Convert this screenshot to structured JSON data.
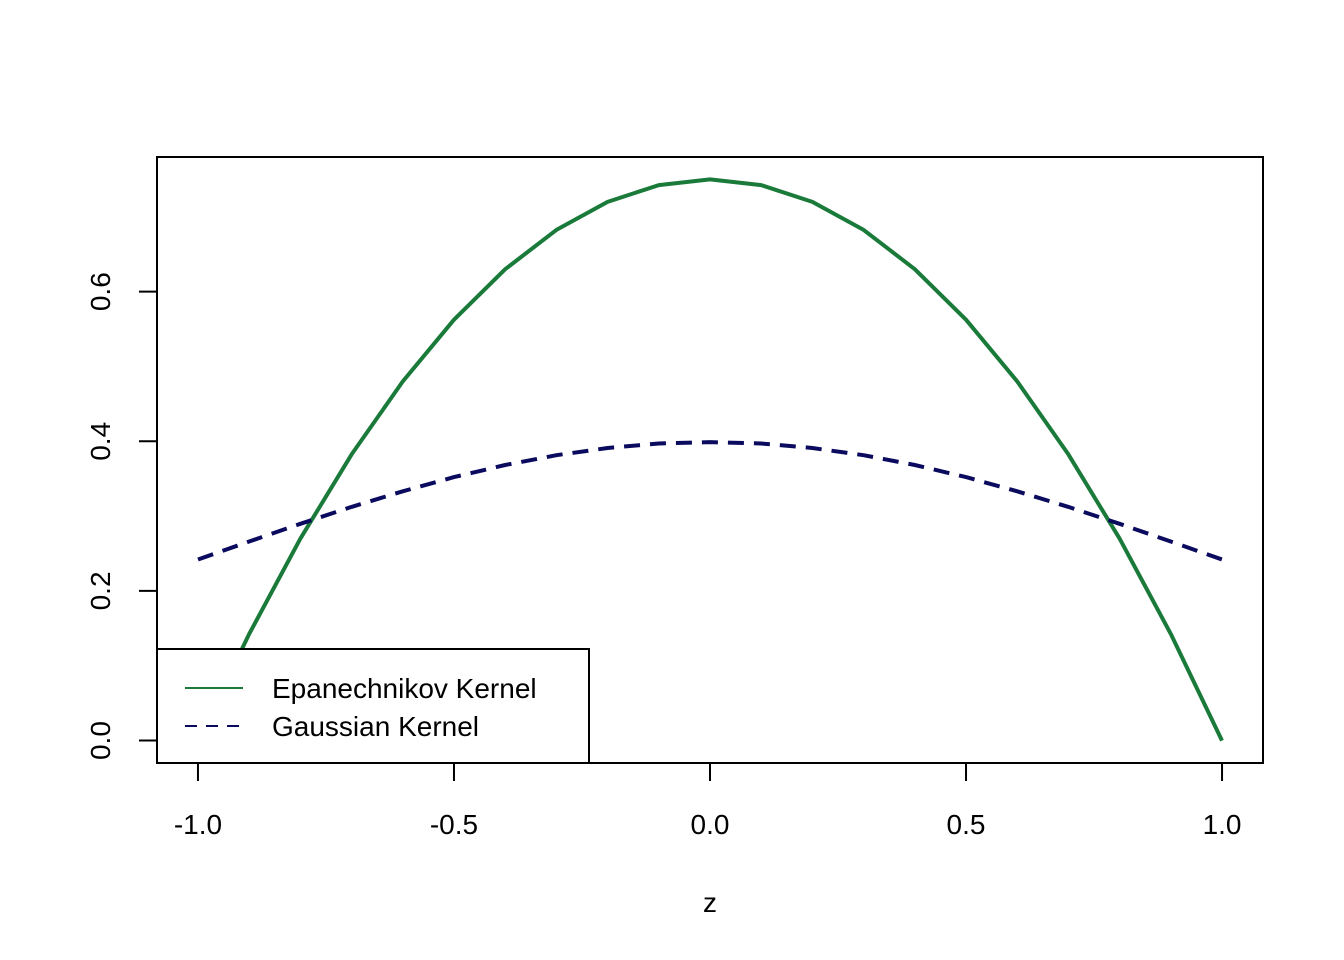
{
  "chart_data": {
    "type": "line",
    "title": "",
    "xlabel": "z",
    "ylabel": "",
    "xlim": [
      -1.08,
      1.08
    ],
    "ylim": [
      -0.03,
      0.78
    ],
    "x_ticks": [
      -1.0,
      -0.5,
      0.0,
      0.5,
      1.0
    ],
    "x_tick_labels": [
      "-1.0",
      "-0.5",
      "0.0",
      "0.5",
      "1.0"
    ],
    "y_ticks": [
      0.0,
      0.2,
      0.4,
      0.6
    ],
    "y_tick_labels": [
      "0.0",
      "0.2",
      "0.4",
      "0.6"
    ],
    "grid": false,
    "legend_position": "bottom-left",
    "series": [
      {
        "name": "Epanechnikov Kernel",
        "color": "#1a7a3a",
        "dash": "solid",
        "x": [
          -1.0,
          -0.9,
          -0.8,
          -0.7,
          -0.6,
          -0.5,
          -0.4,
          -0.3,
          -0.2,
          -0.1,
          0.0,
          0.1,
          0.2,
          0.3,
          0.4,
          0.5,
          0.6,
          0.7,
          0.8,
          0.9,
          1.0
        ],
        "y": [
          0.0,
          0.1425,
          0.27,
          0.3825,
          0.48,
          0.5625,
          0.63,
          0.6825,
          0.72,
          0.7425,
          0.75,
          0.7425,
          0.72,
          0.6825,
          0.63,
          0.5625,
          0.48,
          0.3825,
          0.27,
          0.1425,
          0.0
        ]
      },
      {
        "name": "Gaussian Kernel",
        "color": "#0a0a5e",
        "dash": "dashed",
        "x": [
          -1.0,
          -0.9,
          -0.8,
          -0.7,
          -0.6,
          -0.5,
          -0.4,
          -0.3,
          -0.2,
          -0.1,
          0.0,
          0.1,
          0.2,
          0.3,
          0.4,
          0.5,
          0.6,
          0.7,
          0.8,
          0.9,
          1.0
        ],
        "y": [
          0.242,
          0.2661,
          0.2897,
          0.3123,
          0.3332,
          0.3521,
          0.3683,
          0.3814,
          0.391,
          0.397,
          0.3989,
          0.397,
          0.391,
          0.3814,
          0.3683,
          0.3521,
          0.3332,
          0.3123,
          0.2897,
          0.2661,
          0.242
        ]
      }
    ]
  }
}
